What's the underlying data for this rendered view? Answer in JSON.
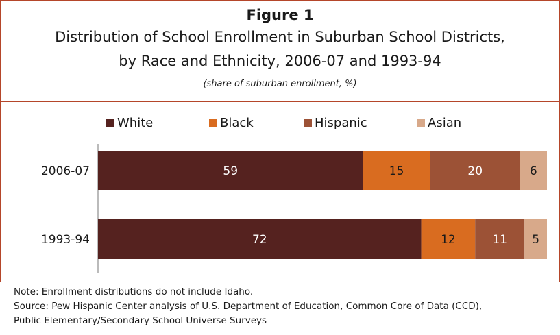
{
  "figure": {
    "label": "Figure 1",
    "title_line1": "Distribution of School Enrollment in Suburban School Districts,",
    "title_line2": "by Race and Ethnicity, 2006-07 and 1993-94",
    "subtitle": "(share of suburban enrollment, %)"
  },
  "notes": {
    "note": "Note: Enrollment distributions do not include Idaho.",
    "source_line1": "Source: Pew Hispanic Center analysis of U.S. Department of Education, Common Core of Data (CCD),",
    "source_line2": "Public Elementary/Secondary School Universe Surveys"
  },
  "colors": {
    "White": "#55221f",
    "Black": "#d96c20",
    "Hispanic": "#9c5236",
    "Asian": "#d8a98a",
    "frame": "#b5462a"
  },
  "chart_data": {
    "type": "bar",
    "orientation": "horizontal",
    "stacked": true,
    "categories": [
      "2006-07",
      "1993-94"
    ],
    "series": [
      {
        "name": "White",
        "values": [
          59,
          72
        ]
      },
      {
        "name": "Black",
        "values": [
          15,
          12
        ]
      },
      {
        "name": "Hispanic",
        "values": [
          20,
          11
        ]
      },
      {
        "name": "Asian",
        "values": [
          6,
          5
        ]
      }
    ],
    "xlim": [
      0,
      100
    ],
    "legend_position": "top",
    "grid": false
  }
}
